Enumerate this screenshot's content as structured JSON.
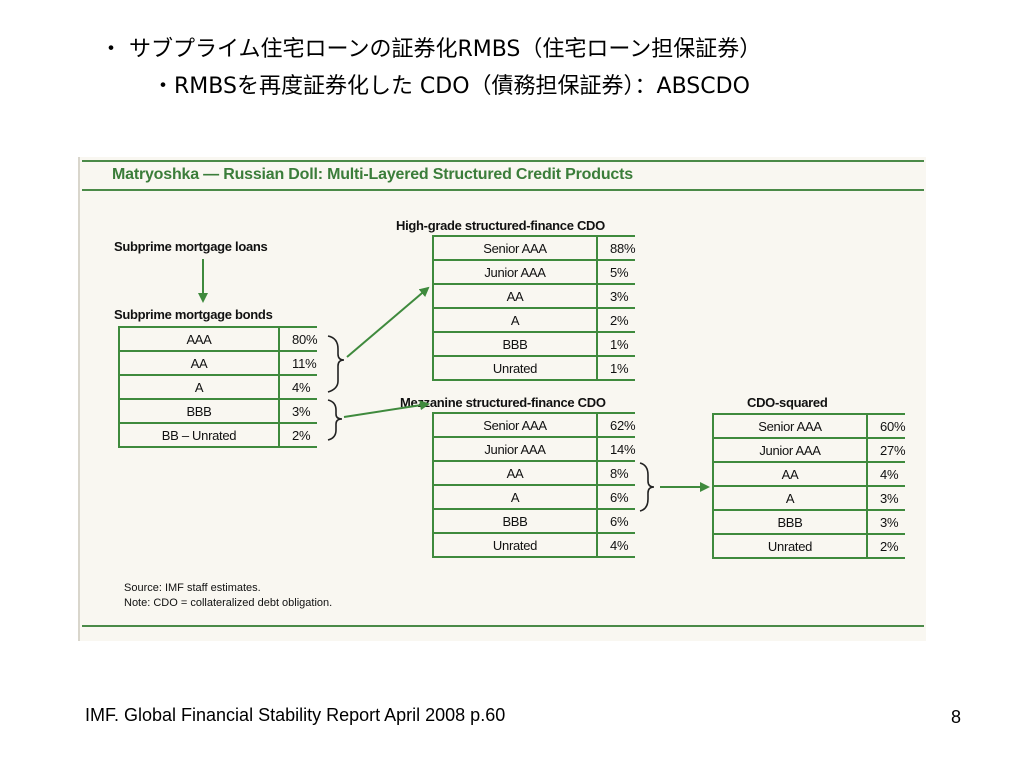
{
  "slide": {
    "heading_line1": "・ サブプライム住宅ローンの証券化RMBS（住宅ローン担保証券）",
    "heading_line2": "・RMBSを再度証券化した CDO（債務担保証券）：ABSCDO",
    "footer": "IMF. Global Financial Stability Report  April 2008 p.60",
    "page_number": "8"
  },
  "figure": {
    "title": "Matryoshka — Russian Doll: Multi-Layered Structured Credit Products",
    "source": "Source: IMF staff estimates.",
    "note": "Note: CDO = collateralized debt obligation.",
    "loans_label": "Subprime mortgage loans",
    "bonds_label": "Subprime mortgage bonds",
    "bonds_rows": [
      {
        "label": "AAA",
        "pct": "80%"
      },
      {
        "label": "AA",
        "pct": "11%"
      },
      {
        "label": "A",
        "pct": "4%"
      },
      {
        "label": "BBB",
        "pct": "3%"
      },
      {
        "label": "BB – Unrated",
        "pct": "2%"
      }
    ],
    "highgrade_label": "High-grade structured-finance CDO",
    "highgrade_rows": [
      {
        "label": "Senior AAA",
        "pct": "88%"
      },
      {
        "label": "Junior AAA",
        "pct": "5%"
      },
      {
        "label": "AA",
        "pct": "3%"
      },
      {
        "label": "A",
        "pct": "2%"
      },
      {
        "label": "BBB",
        "pct": "1%"
      },
      {
        "label": "Unrated",
        "pct": "1%"
      }
    ],
    "mezz_label": "Mezzanine structured-finance CDO",
    "mezz_rows": [
      {
        "label": "Senior AAA",
        "pct": "62%"
      },
      {
        "label": "Junior AAA",
        "pct": "14%"
      },
      {
        "label": "AA",
        "pct": "8%"
      },
      {
        "label": "A",
        "pct": "6%"
      },
      {
        "label": "BBB",
        "pct": "6%"
      },
      {
        "label": "Unrated",
        "pct": "4%"
      }
    ],
    "squared_label": "CDO-squared",
    "squared_rows": [
      {
        "label": "Senior AAA",
        "pct": "60%"
      },
      {
        "label": "Junior AAA",
        "pct": "27%"
      },
      {
        "label": "AA",
        "pct": "4%"
      },
      {
        "label": "A",
        "pct": "3%"
      },
      {
        "label": "BBB",
        "pct": "3%"
      },
      {
        "label": "Unrated",
        "pct": "2%"
      }
    ],
    "colors": {
      "accent": "#3f8a3d",
      "panel_bg": "#f9f7f1"
    }
  }
}
